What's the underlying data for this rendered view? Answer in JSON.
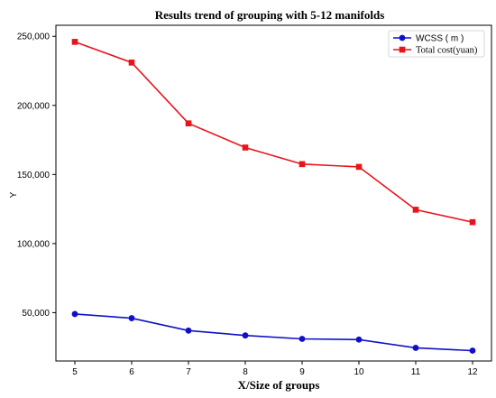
{
  "chart_data": {
    "type": "line",
    "title": "Results trend of grouping with 5-12 manifolds",
    "xlabel": "X/Size of groups",
    "ylabel": "Y",
    "x": [
      5,
      6,
      7,
      8,
      9,
      10,
      11,
      12
    ],
    "xticks": [
      "5",
      "6",
      "7",
      "8",
      "9",
      "10",
      "11",
      "12"
    ],
    "yticks": [
      50000,
      100000,
      150000,
      200000,
      250000
    ],
    "ytick_labels": [
      "50,000",
      "100,000",
      "150,000",
      "200,000",
      "250,000"
    ],
    "ylim": [
      15000,
      258000
    ],
    "grid": false,
    "legend_position": "top-right",
    "series": [
      {
        "name": "WCSS ( m )",
        "color": "#1010c8",
        "marker": "circle",
        "values": [
          49000,
          46000,
          37000,
          33500,
          31000,
          30500,
          24500,
          22500
        ]
      },
      {
        "name": "Total cost(yuan)",
        "color": "#e8141c",
        "marker": "square",
        "values": [
          246000,
          231000,
          187000,
          169500,
          157500,
          155500,
          124500,
          115500
        ]
      }
    ]
  }
}
